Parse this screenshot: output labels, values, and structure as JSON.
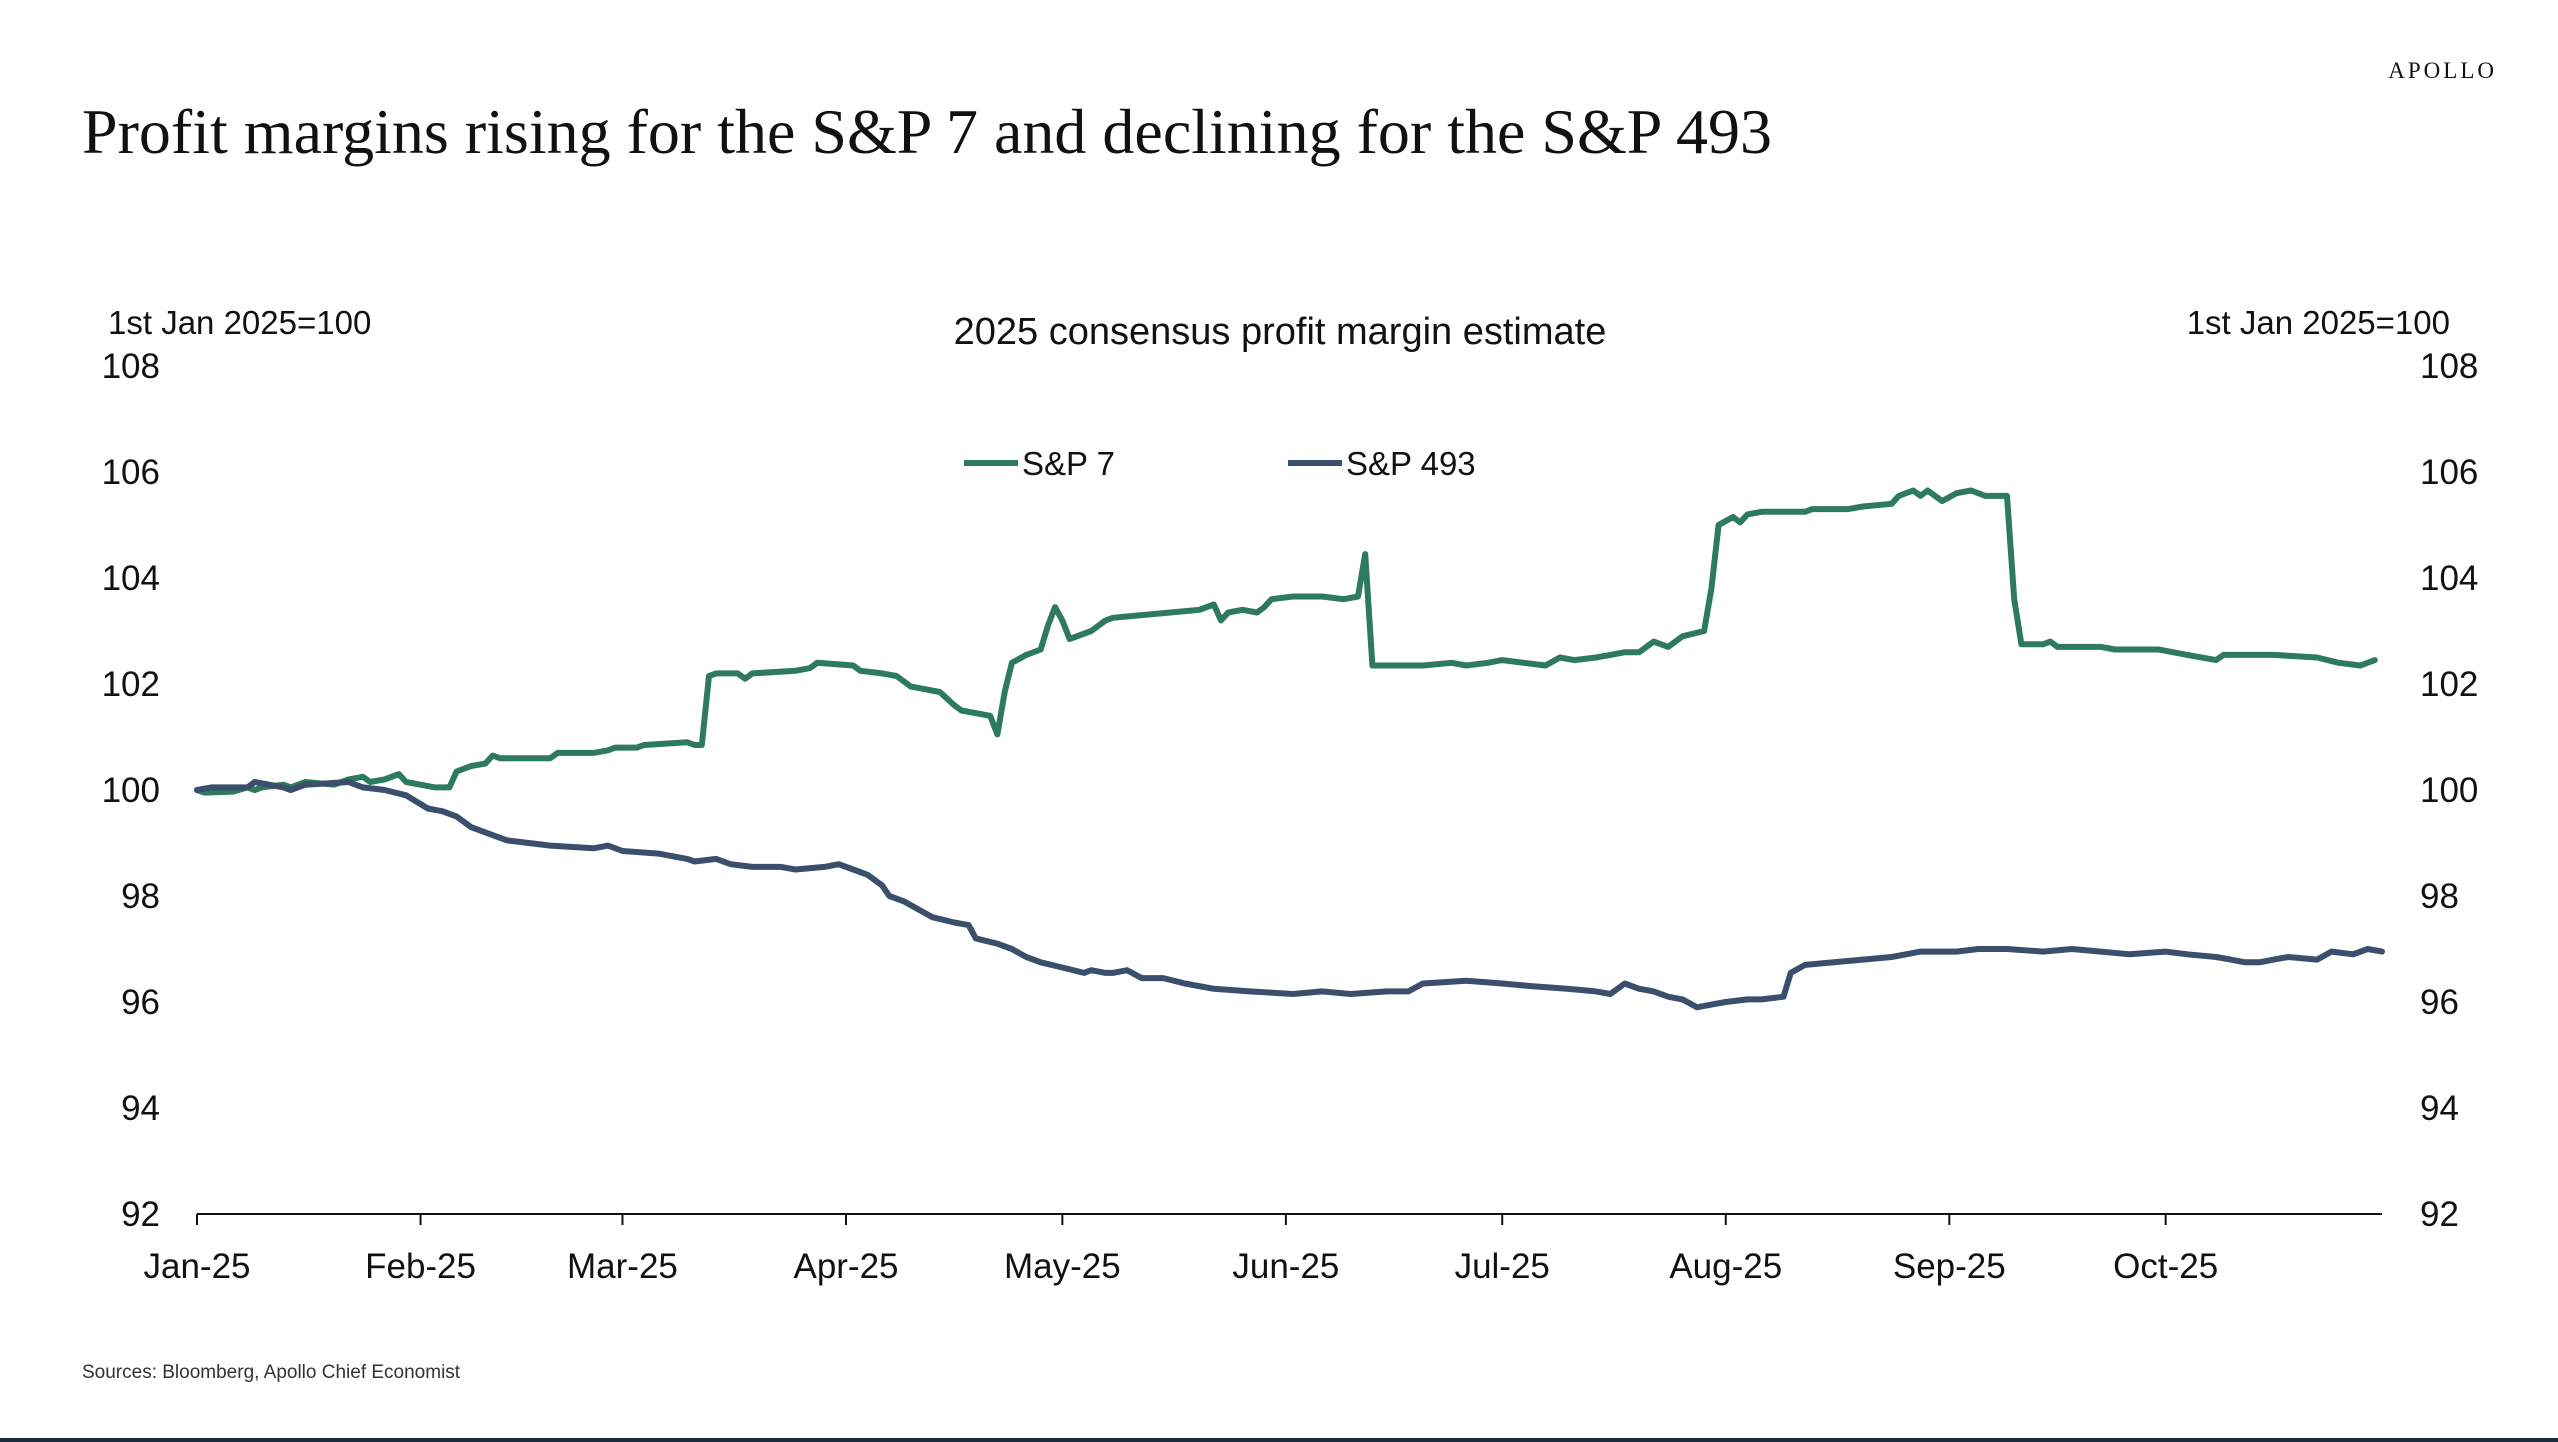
{
  "header": {
    "brand": "APOLLO",
    "title": "Profit margins rising for the S&P 7 and declining for the S&P 493"
  },
  "footer": {
    "source": "Sources: Bloomberg, Apollo Chief Economist"
  },
  "chart_data": {
    "type": "line",
    "title": "2025 consensus profit margin estimate",
    "ylabel_left": "1st Jan 2025=100",
    "ylabel_right": "1st Jan 2025=100",
    "ylim": [
      92,
      108
    ],
    "yticks": [
      92,
      94,
      96,
      98,
      100,
      102,
      104,
      106,
      108
    ],
    "xlim": [
      "2025-01-01",
      "2025-10-31"
    ],
    "xticks": [
      {
        "date": "2025-01-01",
        "label": "Jan-25"
      },
      {
        "date": "2025-02-01",
        "label": "Feb-25"
      },
      {
        "date": "2025-03-01",
        "label": "Mar-25"
      },
      {
        "date": "2025-04-01",
        "label": "Apr-25"
      },
      {
        "date": "2025-05-01",
        "label": "May-25"
      },
      {
        "date": "2025-06-01",
        "label": "Jun-25"
      },
      {
        "date": "2025-07-01",
        "label": "Jul-25"
      },
      {
        "date": "2025-08-01",
        "label": "Aug-25"
      },
      {
        "date": "2025-09-01",
        "label": "Sep-25"
      },
      {
        "date": "2025-10-01",
        "label": "Oct-25"
      }
    ],
    "grid": false,
    "legend_position": "top-center",
    "series": [
      {
        "name": "S&P 7",
        "color": "#2e7a5e",
        "points": [
          [
            "2025-01-01",
            100.0
          ],
          [
            "2025-01-02",
            99.95
          ],
          [
            "2025-01-06",
            99.97
          ],
          [
            "2025-01-08",
            100.05
          ],
          [
            "2025-01-09",
            100.0
          ],
          [
            "2025-01-10",
            100.05
          ],
          [
            "2025-01-13",
            100.1
          ],
          [
            "2025-01-14",
            100.05
          ],
          [
            "2025-01-16",
            100.15
          ],
          [
            "2025-01-20",
            100.1
          ],
          [
            "2025-01-22",
            100.2
          ],
          [
            "2025-01-24",
            100.25
          ],
          [
            "2025-01-25",
            100.15
          ],
          [
            "2025-01-27",
            100.2
          ],
          [
            "2025-01-29",
            100.3
          ],
          [
            "2025-01-30",
            100.15
          ],
          [
            "2025-02-01",
            100.1
          ],
          [
            "2025-02-03",
            100.05
          ],
          [
            "2025-02-05",
            100.05
          ],
          [
            "2025-02-06",
            100.35
          ],
          [
            "2025-02-08",
            100.45
          ],
          [
            "2025-02-10",
            100.5
          ],
          [
            "2025-02-11",
            100.65
          ],
          [
            "2025-02-12",
            100.6
          ],
          [
            "2025-02-17",
            100.6
          ],
          [
            "2025-02-19",
            100.6
          ],
          [
            "2025-02-20",
            100.7
          ],
          [
            "2025-02-25",
            100.7
          ],
          [
            "2025-02-27",
            100.75
          ],
          [
            "2025-02-28",
            100.8
          ],
          [
            "2025-03-03",
            100.8
          ],
          [
            "2025-03-04",
            100.85
          ],
          [
            "2025-03-10",
            100.9
          ],
          [
            "2025-03-11",
            100.85
          ],
          [
            "2025-03-12",
            100.85
          ],
          [
            "2025-03-13",
            102.15
          ],
          [
            "2025-03-14",
            102.2
          ],
          [
            "2025-03-17",
            102.2
          ],
          [
            "2025-03-18",
            102.1
          ],
          [
            "2025-03-19",
            102.2
          ],
          [
            "2025-03-25",
            102.25
          ],
          [
            "2025-03-27",
            102.3
          ],
          [
            "2025-03-28",
            102.4
          ],
          [
            "2025-04-02",
            102.35
          ],
          [
            "2025-04-03",
            102.25
          ],
          [
            "2025-04-06",
            102.2
          ],
          [
            "2025-04-08",
            102.15
          ],
          [
            "2025-04-10",
            101.95
          ],
          [
            "2025-04-14",
            101.85
          ],
          [
            "2025-04-16",
            101.6
          ],
          [
            "2025-04-17",
            101.5
          ],
          [
            "2025-04-21",
            101.4
          ],
          [
            "2025-04-22",
            101.05
          ],
          [
            "2025-04-23",
            101.85
          ],
          [
            "2025-04-24",
            102.4
          ],
          [
            "2025-04-26",
            102.55
          ],
          [
            "2025-04-28",
            102.65
          ],
          [
            "2025-04-29",
            103.1
          ],
          [
            "2025-04-30",
            103.45
          ],
          [
            "2025-05-01",
            103.2
          ],
          [
            "2025-05-02",
            102.85
          ],
          [
            "2025-05-05",
            103.0
          ],
          [
            "2025-05-07",
            103.2
          ],
          [
            "2025-05-08",
            103.25
          ],
          [
            "2025-05-12",
            103.3
          ],
          [
            "2025-05-16",
            103.35
          ],
          [
            "2025-05-20",
            103.4
          ],
          [
            "2025-05-22",
            103.5
          ],
          [
            "2025-05-23",
            103.2
          ],
          [
            "2025-05-24",
            103.35
          ],
          [
            "2025-05-26",
            103.4
          ],
          [
            "2025-05-28",
            103.35
          ],
          [
            "2025-05-29",
            103.45
          ],
          [
            "2025-05-30",
            103.6
          ],
          [
            "2025-06-02",
            103.65
          ],
          [
            "2025-06-06",
            103.65
          ],
          [
            "2025-06-09",
            103.6
          ],
          [
            "2025-06-11",
            103.65
          ],
          [
            "2025-06-12",
            104.45
          ],
          [
            "2025-06-13",
            102.35
          ],
          [
            "2025-06-16",
            102.35
          ],
          [
            "2025-06-17",
            102.35
          ],
          [
            "2025-06-20",
            102.35
          ],
          [
            "2025-06-24",
            102.4
          ],
          [
            "2025-06-26",
            102.35
          ],
          [
            "2025-06-29",
            102.4
          ],
          [
            "2025-07-01",
            102.45
          ],
          [
            "2025-07-04",
            102.4
          ],
          [
            "2025-07-07",
            102.35
          ],
          [
            "2025-07-09",
            102.5
          ],
          [
            "2025-07-11",
            102.45
          ],
          [
            "2025-07-14",
            102.5
          ],
          [
            "2025-07-16",
            102.55
          ],
          [
            "2025-07-18",
            102.6
          ],
          [
            "2025-07-20",
            102.6
          ],
          [
            "2025-07-22",
            102.8
          ],
          [
            "2025-07-24",
            102.7
          ],
          [
            "2025-07-26",
            102.9
          ],
          [
            "2025-07-29",
            103.0
          ],
          [
            "2025-07-30",
            103.8
          ],
          [
            "2025-07-31",
            105.0
          ],
          [
            "2025-08-02",
            105.15
          ],
          [
            "2025-08-03",
            105.05
          ],
          [
            "2025-08-04",
            105.2
          ],
          [
            "2025-08-06",
            105.25
          ],
          [
            "2025-08-12",
            105.25
          ],
          [
            "2025-08-13",
            105.3
          ],
          [
            "2025-08-18",
            105.3
          ],
          [
            "2025-08-20",
            105.35
          ],
          [
            "2025-08-24",
            105.4
          ],
          [
            "2025-08-25",
            105.55
          ],
          [
            "2025-08-27",
            105.65
          ],
          [
            "2025-08-28",
            105.55
          ],
          [
            "2025-08-29",
            105.65
          ],
          [
            "2025-08-31",
            105.45
          ],
          [
            "2025-09-02",
            105.6
          ],
          [
            "2025-09-04",
            105.65
          ],
          [
            "2025-09-06",
            105.55
          ],
          [
            "2025-09-08",
            105.55
          ],
          [
            "2025-09-09",
            105.55
          ],
          [
            "2025-09-10",
            103.6
          ],
          [
            "2025-09-11",
            102.75
          ],
          [
            "2025-09-14",
            102.75
          ],
          [
            "2025-09-15",
            102.8
          ],
          [
            "2025-09-16",
            102.7
          ],
          [
            "2025-09-22",
            102.7
          ],
          [
            "2025-09-24",
            102.65
          ],
          [
            "2025-09-30",
            102.65
          ],
          [
            "2025-10-04",
            102.55
          ],
          [
            "2025-10-08",
            102.45
          ],
          [
            "2025-10-09",
            102.55
          ],
          [
            "2025-10-12",
            102.55
          ],
          [
            "2025-10-16",
            102.55
          ],
          [
            "2025-10-22",
            102.5
          ],
          [
            "2025-10-25",
            102.4
          ],
          [
            "2025-10-28",
            102.35
          ],
          [
            "2025-10-30",
            102.45
          ]
        ]
      },
      {
        "name": "S&P 493",
        "color": "#3a4f6b",
        "points": [
          [
            "2025-01-01",
            100.0
          ],
          [
            "2025-01-03",
            100.05
          ],
          [
            "2025-01-08",
            100.05
          ],
          [
            "2025-01-09",
            100.15
          ],
          [
            "2025-01-11",
            100.1
          ],
          [
            "2025-01-13",
            100.05
          ],
          [
            "2025-01-14",
            100.0
          ],
          [
            "2025-01-16",
            100.1
          ],
          [
            "2025-01-22",
            100.15
          ],
          [
            "2025-01-24",
            100.05
          ],
          [
            "2025-01-27",
            100.0
          ],
          [
            "2025-01-30",
            99.9
          ],
          [
            "2025-02-02",
            99.65
          ],
          [
            "2025-02-04",
            99.6
          ],
          [
            "2025-02-06",
            99.5
          ],
          [
            "2025-02-08",
            99.3
          ],
          [
            "2025-02-10",
            99.2
          ],
          [
            "2025-02-13",
            99.05
          ],
          [
            "2025-02-16",
            99.0
          ],
          [
            "2025-02-19",
            98.95
          ],
          [
            "2025-02-25",
            98.9
          ],
          [
            "2025-02-27",
            98.95
          ],
          [
            "2025-03-01",
            98.85
          ],
          [
            "2025-03-06",
            98.8
          ],
          [
            "2025-03-08",
            98.75
          ],
          [
            "2025-03-10",
            98.7
          ],
          [
            "2025-03-11",
            98.65
          ],
          [
            "2025-03-14",
            98.7
          ],
          [
            "2025-03-16",
            98.6
          ],
          [
            "2025-03-19",
            98.55
          ],
          [
            "2025-03-23",
            98.55
          ],
          [
            "2025-03-25",
            98.5
          ],
          [
            "2025-03-29",
            98.55
          ],
          [
            "2025-03-31",
            98.6
          ],
          [
            "2025-04-02",
            98.5
          ],
          [
            "2025-04-04",
            98.4
          ],
          [
            "2025-04-06",
            98.2
          ],
          [
            "2025-04-07",
            98.0
          ],
          [
            "2025-04-09",
            97.9
          ],
          [
            "2025-04-11",
            97.75
          ],
          [
            "2025-04-13",
            97.6
          ],
          [
            "2025-04-16",
            97.5
          ],
          [
            "2025-04-18",
            97.45
          ],
          [
            "2025-04-19",
            97.2
          ],
          [
            "2025-04-22",
            97.1
          ],
          [
            "2025-04-24",
            97.0
          ],
          [
            "2025-04-26",
            96.85
          ],
          [
            "2025-04-28",
            96.75
          ],
          [
            "2025-05-01",
            96.65
          ],
          [
            "2025-05-04",
            96.55
          ],
          [
            "2025-05-05",
            96.6
          ],
          [
            "2025-05-07",
            96.55
          ],
          [
            "2025-05-08",
            96.55
          ],
          [
            "2025-05-10",
            96.6
          ],
          [
            "2025-05-12",
            96.45
          ],
          [
            "2025-05-15",
            96.45
          ],
          [
            "2025-05-18",
            96.35
          ],
          [
            "2025-05-22",
            96.25
          ],
          [
            "2025-05-27",
            96.2
          ],
          [
            "2025-06-02",
            96.15
          ],
          [
            "2025-06-06",
            96.2
          ],
          [
            "2025-06-10",
            96.15
          ],
          [
            "2025-06-15",
            96.2
          ],
          [
            "2025-06-18",
            96.2
          ],
          [
            "2025-06-20",
            96.35
          ],
          [
            "2025-06-26",
            96.4
          ],
          [
            "2025-07-01",
            96.35
          ],
          [
            "2025-07-05",
            96.3
          ],
          [
            "2025-07-10",
            96.25
          ],
          [
            "2025-07-14",
            96.2
          ],
          [
            "2025-07-16",
            96.15
          ],
          [
            "2025-07-18",
            96.35
          ],
          [
            "2025-07-20",
            96.25
          ],
          [
            "2025-07-22",
            96.2
          ],
          [
            "2025-07-24",
            96.1
          ],
          [
            "2025-07-26",
            96.05
          ],
          [
            "2025-07-28",
            95.9
          ],
          [
            "2025-07-30",
            95.95
          ],
          [
            "2025-08-01",
            96.0
          ],
          [
            "2025-08-04",
            96.05
          ],
          [
            "2025-08-06",
            96.05
          ],
          [
            "2025-08-09",
            96.1
          ],
          [
            "2025-08-10",
            96.55
          ],
          [
            "2025-08-12",
            96.7
          ],
          [
            "2025-08-16",
            96.75
          ],
          [
            "2025-08-20",
            96.8
          ],
          [
            "2025-08-24",
            96.85
          ],
          [
            "2025-08-26",
            96.9
          ],
          [
            "2025-08-28",
            96.95
          ],
          [
            "2025-09-02",
            96.95
          ],
          [
            "2025-09-05",
            97.0
          ],
          [
            "2025-09-09",
            97.0
          ],
          [
            "2025-09-14",
            96.95
          ],
          [
            "2025-09-18",
            97.0
          ],
          [
            "2025-09-22",
            96.95
          ],
          [
            "2025-09-26",
            96.9
          ],
          [
            "2025-10-01",
            96.95
          ],
          [
            "2025-10-04",
            96.9
          ],
          [
            "2025-10-08",
            96.85
          ],
          [
            "2025-10-10",
            96.8
          ],
          [
            "2025-10-12",
            96.75
          ],
          [
            "2025-10-14",
            96.75
          ],
          [
            "2025-10-16",
            96.8
          ],
          [
            "2025-10-18",
            96.85
          ],
          [
            "2025-10-22",
            96.8
          ],
          [
            "2025-10-24",
            96.95
          ],
          [
            "2025-10-27",
            96.9
          ],
          [
            "2025-10-29",
            97.0
          ],
          [
            "2025-10-31",
            96.95
          ]
        ]
      }
    ]
  }
}
